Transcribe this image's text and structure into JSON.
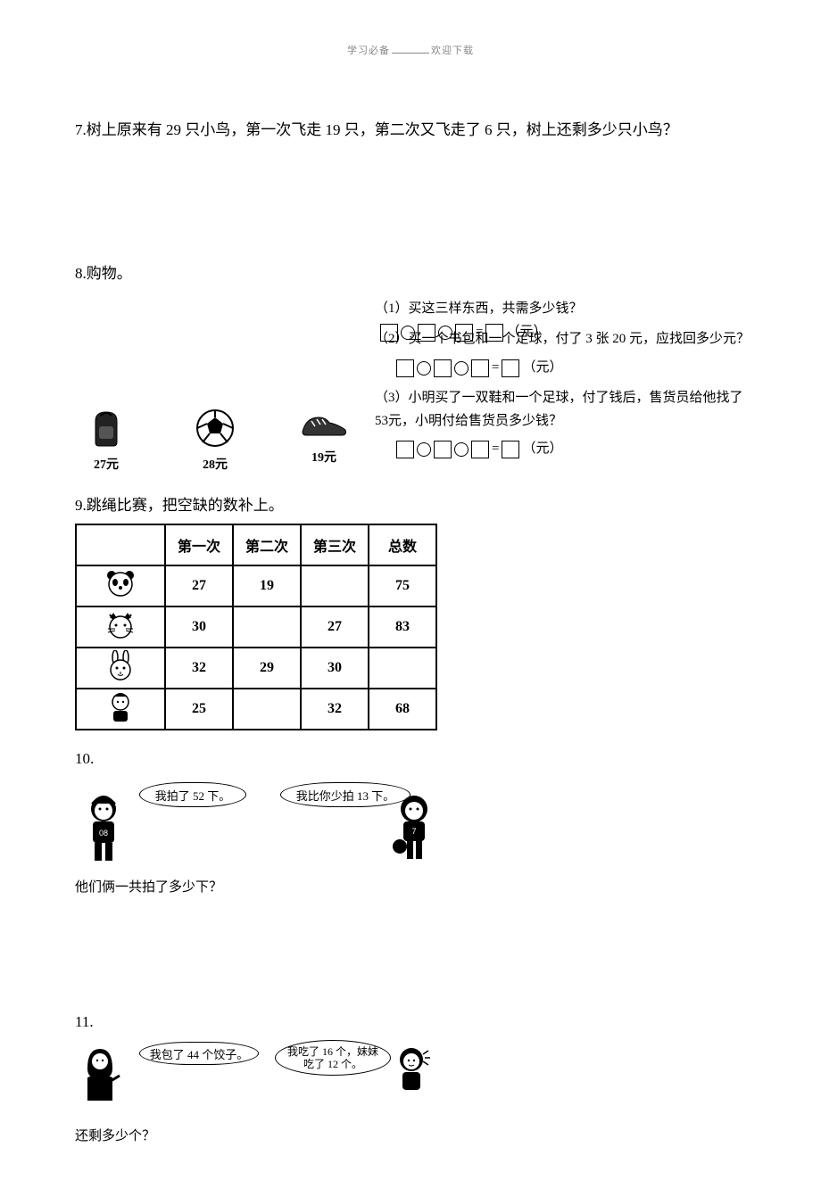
{
  "header": {
    "left": "学习必备",
    "right": "欢迎下载"
  },
  "q7": {
    "text": "7.树上原来有 29 只小鸟，第一次飞走 19 只，第二次又飞走了 6 只，树上还剩多少只小鸟？"
  },
  "q8": {
    "title": "8.购物。",
    "items": [
      {
        "label": "27元",
        "name": "backpack"
      },
      {
        "label": "28元",
        "name": "soccer-ball"
      },
      {
        "label": "19元",
        "name": "shoes"
      }
    ],
    "subs": [
      {
        "prompt": "（1）买这三样东西，共需多少钱？",
        "unit": "（元）"
      },
      {
        "prompt": "（2）买一个书包和一个足球，付了 3 张 20 元，应找回多少元？",
        "unit": "（元）"
      },
      {
        "prompt": "（3）小明买了一双鞋和一个足球，付了钱后，售货员给他找了 53元，小明付给售货员多少钱？",
        "unit": "（元）"
      }
    ]
  },
  "q9": {
    "title": "9.跳绳比赛，把空缺的数补上。",
    "headers": [
      "",
      "第一次",
      "第二次",
      "第三次",
      "总数"
    ],
    "rows": [
      {
        "icon": "panda",
        "v": [
          "27",
          "19",
          "",
          "75"
        ]
      },
      {
        "icon": "cat",
        "v": [
          "30",
          "",
          "27",
          "83"
        ]
      },
      {
        "icon": "rabbit",
        "v": [
          "32",
          "29",
          "30",
          ""
        ]
      },
      {
        "icon": "kid",
        "v": [
          "25",
          "",
          "32",
          "68"
        ]
      }
    ]
  },
  "q10": {
    "title": "10.",
    "bubble_left": "我拍了 52 下。",
    "bubble_right": "我比你少拍 13 下。",
    "caption": "他们俩一共拍了多少下？"
  },
  "q11": {
    "title": "11.",
    "bubble_left": "我包了 44 个饺子。",
    "bubble_right": "我吃了 16 个，妹妹吃了 12 个。",
    "caption": "还剩多少个？"
  },
  "colors": {
    "text": "#000000",
    "bg": "#ffffff",
    "header": "#888888"
  }
}
